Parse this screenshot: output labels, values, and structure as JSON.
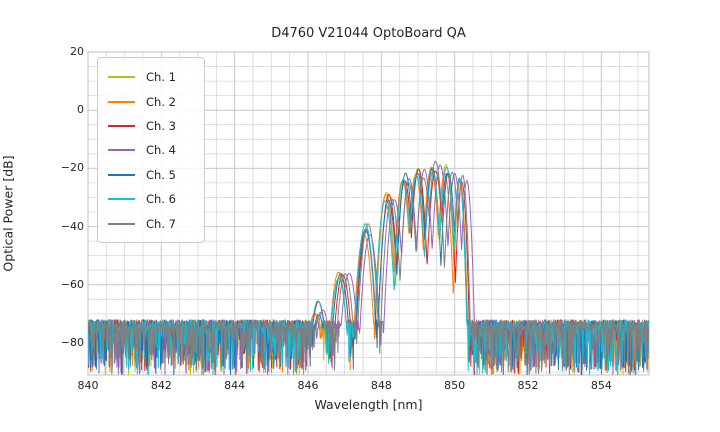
{
  "figure": {
    "background": "#ffffff",
    "text_color": "#262626"
  },
  "chart_data": {
    "type": "line",
    "title": "D4760 V21044 OptoBoard QA",
    "xlabel": "Wavelength [nm]",
    "ylabel": "Optical Power [dB]",
    "xlim": [
      840.0,
      855.3
    ],
    "ylim": [
      -91.0,
      20.0
    ],
    "xticks": [
      {
        "value": 840,
        "label": "840"
      },
      {
        "value": 842,
        "label": "842"
      },
      {
        "value": 844,
        "label": "844"
      },
      {
        "value": 846,
        "label": "846"
      },
      {
        "value": 848,
        "label": "848"
      },
      {
        "value": 850,
        "label": "850"
      },
      {
        "value": 852,
        "label": "852"
      },
      {
        "value": 854,
        "label": "854"
      }
    ],
    "yticks": [
      {
        "value": 20,
        "label": "20"
      },
      {
        "value": 0,
        "label": "0"
      },
      {
        "value": -20,
        "label": "−20"
      },
      {
        "value": -40,
        "label": "−40"
      },
      {
        "value": -60,
        "label": "−60"
      },
      {
        "value": -80,
        "label": "−80"
      }
    ],
    "grid": {
      "on": true,
      "minor_x_step_nm": 0.5,
      "minor_y_step_db": 5,
      "major_color": "#c8c8c8",
      "minor_color": "#d6d6d6"
    },
    "legend": {
      "position": "upper-left"
    },
    "series": [
      {
        "name": "Ch. 1",
        "color": "#bcbd22",
        "offset_nm": -0.05,
        "seed": 101
      },
      {
        "name": "Ch. 2",
        "color": "#ff7f0e",
        "offset_nm": -0.09,
        "seed": 202
      },
      {
        "name": "Ch. 3",
        "color": "#d62728",
        "offset_nm": -0.01,
        "seed": 303
      },
      {
        "name": "Ch. 4",
        "color": "#9467bd",
        "offset_nm": 0.13,
        "seed": 404
      },
      {
        "name": "Ch. 5",
        "color": "#1f77b4",
        "offset_nm": -0.03,
        "seed": 505
      },
      {
        "name": "Ch. 6",
        "color": "#17becf",
        "offset_nm": -0.07,
        "seed": 606
      },
      {
        "name": "Ch. 7",
        "color": "#7f7f7f",
        "offset_nm": 0.06,
        "seed": 707
      }
    ],
    "signal_band_nm": [
      846.05,
      850.5
    ],
    "envelope_lobes": [
      {
        "center_nm": 846.3,
        "peak_db": -68.0,
        "width_nm": 0.3
      },
      {
        "center_nm": 846.95,
        "peak_db": -58.0,
        "width_nm": 0.28
      },
      {
        "center_nm": 847.6,
        "peak_db": -41.0,
        "width_nm": 0.26
      },
      {
        "center_nm": 848.2,
        "peak_db": -29.0,
        "width_nm": 0.24
      },
      {
        "center_nm": 848.65,
        "peak_db": -23.5,
        "width_nm": 0.22
      },
      {
        "center_nm": 849.05,
        "peak_db": -21.0,
        "width_nm": 0.22
      },
      {
        "center_nm": 849.45,
        "peak_db": -20.0,
        "width_nm": 0.22
      },
      {
        "center_nm": 849.85,
        "peak_db": -21.0,
        "width_nm": 0.2
      },
      {
        "center_nm": 850.2,
        "peak_db": -23.0,
        "width_nm": 0.16
      }
    ],
    "lobe_falloff_db": 30,
    "peak_jitter_db": 5,
    "center_jitter_nm": 0.045,
    "noise_floor_db": -75.5,
    "noise_band_db": 3.5,
    "noise_spike_prob": 0.5,
    "noise_spike_depth_db": 17,
    "sample_step_nm": 0.012
  }
}
